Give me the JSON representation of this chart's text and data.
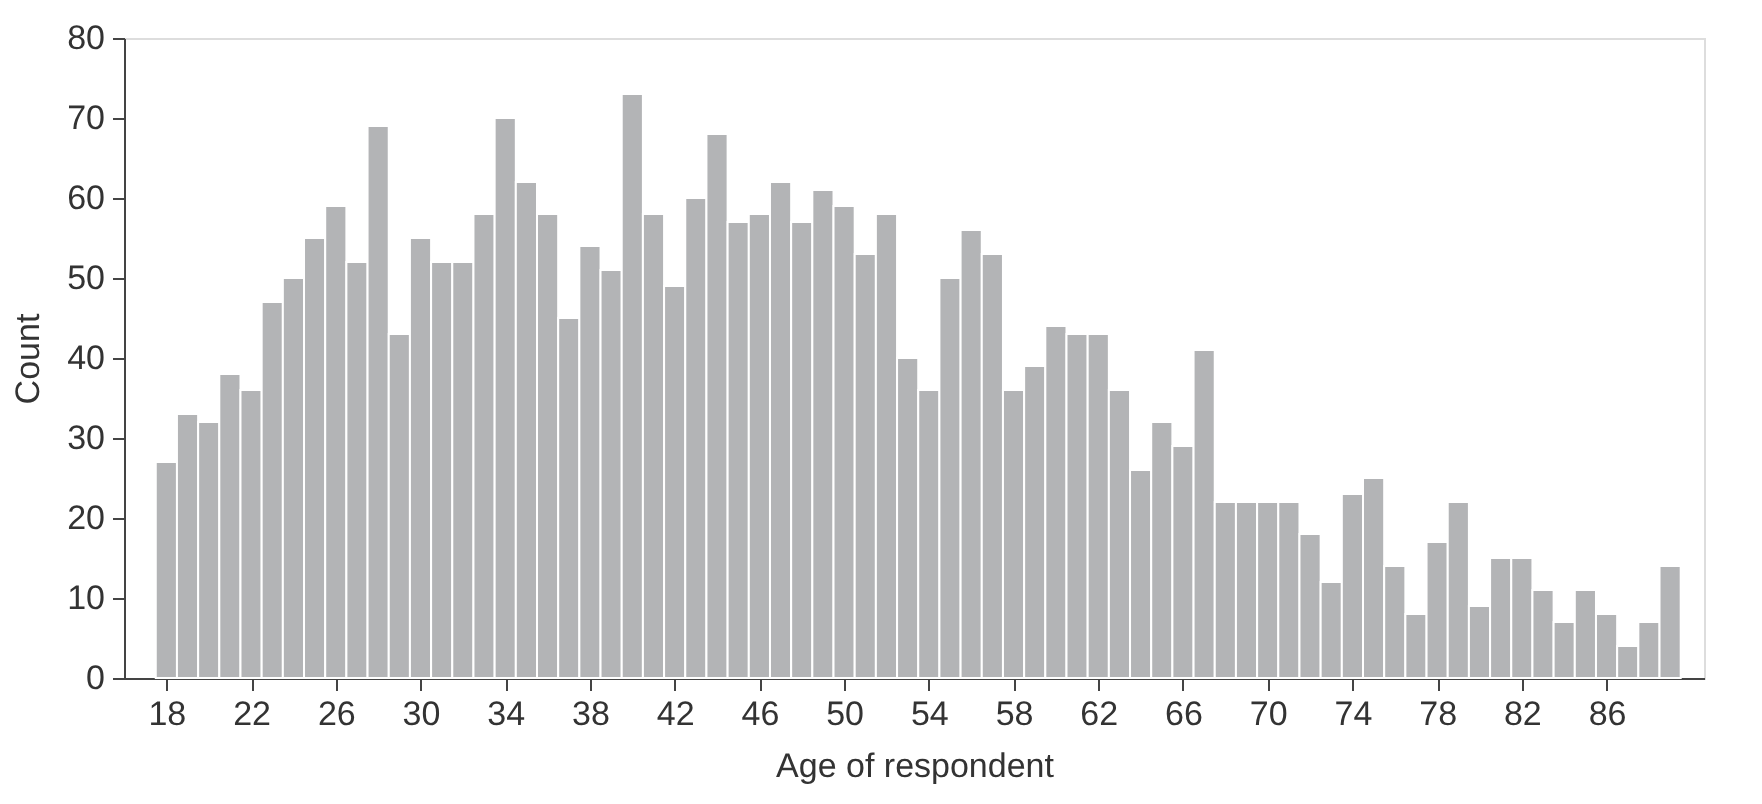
{
  "chart_data": {
    "type": "histogram",
    "xlabel": "Age of respondent",
    "ylabel": "Count",
    "color": "#b3b4b6",
    "bins": [
      17.5,
      18.5,
      19.5,
      20.5,
      21.5,
      22.5,
      23.5,
      24.5,
      25.5,
      26.5,
      27.5,
      28.5,
      29.5,
      30.5,
      31.5,
      32.5,
      33.5,
      34.5,
      35.5,
      36.5,
      37.5,
      38.5,
      39.5,
      40.5,
      41.5,
      42.5,
      43.5,
      44.5,
      45.5,
      46.5,
      47.5,
      48.5,
      49.5,
      50.5,
      51.5,
      52.5,
      53.5,
      54.5,
      55.5,
      56.5,
      57.5,
      58.5,
      59.5,
      60.5,
      61.5,
      62.5,
      63.5,
      64.5,
      65.5,
      66.5,
      67.5,
      68.5,
      69.5,
      70.5,
      71.5,
      72.5,
      73.5,
      74.5,
      75.5,
      76.5,
      77.5,
      78.5,
      79.5,
      80.5,
      81.5,
      82.5,
      83.5,
      84.5,
      85.5,
      86.5,
      87.5,
      88.5,
      89.5
    ],
    "values": [
      27,
      33,
      32,
      38,
      36,
      47,
      50,
      55,
      59,
      52,
      69,
      43,
      55,
      52,
      52,
      58,
      70,
      62,
      58,
      45,
      54,
      51,
      73,
      58,
      49,
      60,
      68,
      57,
      58,
      62,
      57,
      61,
      59,
      53,
      58,
      40,
      36,
      50,
      56,
      53,
      36,
      39,
      44,
      43,
      43,
      36,
      26,
      32,
      29,
      41,
      22,
      22,
      22,
      22,
      18,
      12,
      23,
      25,
      14,
      8,
      17,
      22,
      9,
      15,
      15,
      11,
      7,
      11,
      8,
      4,
      7,
      14
    ],
    "xlim": [
      16,
      90.6
    ],
    "xticks": [
      18,
      22,
      26,
      30,
      34,
      38,
      42,
      46,
      50,
      54,
      58,
      62,
      66,
      70,
      74,
      78,
      82,
      86
    ],
    "ylim": [
      0,
      80
    ],
    "yticks": [
      0,
      10,
      20,
      30,
      40,
      50,
      60,
      70,
      80
    ],
    "grid": false
  }
}
